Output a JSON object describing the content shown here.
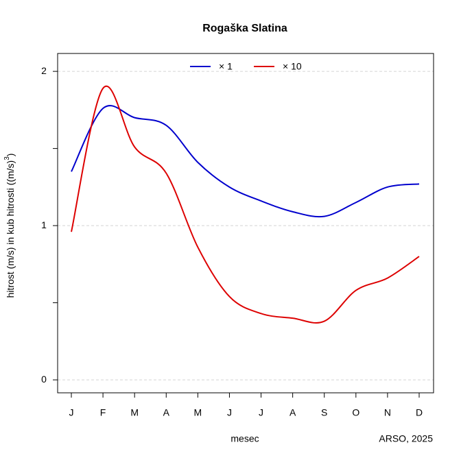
{
  "chart_data": {
    "type": "line",
    "title": "Rogaška Slatina",
    "xlabel": "mesec",
    "ylabel": "hitrost (m/s) in kub hitrosti ((m/s)",
    "ylabel_sup": "3",
    "ylabel_end": ")",
    "source": "ARSO, 2025",
    "categories": [
      "J",
      "F",
      "M",
      "A",
      "M",
      "J",
      "J",
      "A",
      "S",
      "O",
      "N",
      "D"
    ],
    "series": [
      {
        "name": "× 1",
        "color": "#0000cd",
        "values": [
          1.35,
          1.76,
          1.7,
          1.65,
          1.41,
          1.25,
          1.16,
          1.09,
          1.06,
          1.15,
          1.25,
          1.27
        ]
      },
      {
        "name": "× 10",
        "color": "#dd0000",
        "values": [
          0.96,
          1.89,
          1.51,
          1.34,
          0.86,
          0.54,
          0.43,
          0.4,
          0.38,
          0.58,
          0.66,
          0.8
        ]
      }
    ],
    "ylim": [
      -0.084,
      2.116
    ],
    "yticks": [
      0,
      1,
      2
    ],
    "yminor_ticks": [
      0.5,
      1.5
    ],
    "grid": true,
    "legend": "top"
  }
}
